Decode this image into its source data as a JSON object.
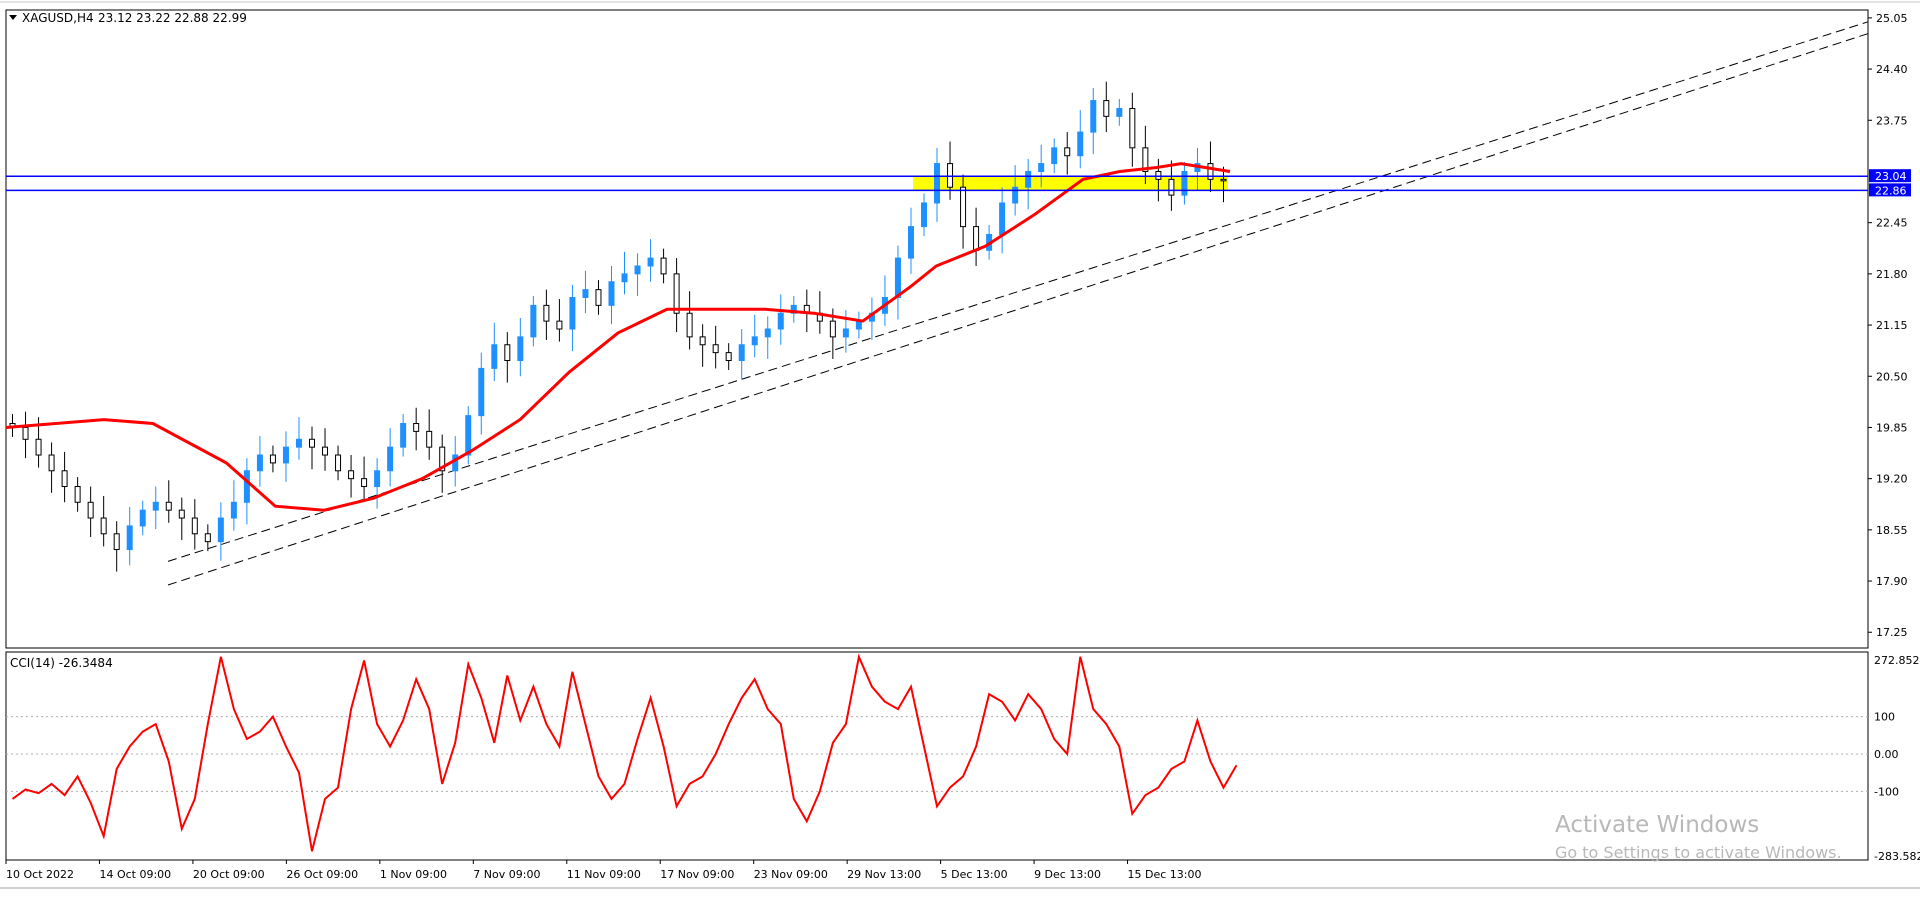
{
  "colors": {
    "background": "#ffffff",
    "frame": "#000000",
    "bull_candle": "#1e90ff",
    "bear_candle": "#000000",
    "moving_average": "#ff0000",
    "cci_line": "#ff0000",
    "level_line": "#0000ff",
    "zone_fill": "#ffff00",
    "trend_line": "#000000",
    "watermark": "#b8b8b8"
  },
  "header": {
    "symbol_label": "XAGUSD,H4",
    "ohlc_text": "23.12 23.22 22.88 22.99"
  },
  "price_axis": {
    "ticks": [
      "25.05",
      "24.40",
      "23.75",
      "22.45",
      "21.80",
      "21.15",
      "20.50",
      "19.85",
      "19.20",
      "18.55",
      "17.90",
      "17.25"
    ],
    "level_labels": [
      "23.04",
      "22.86"
    ]
  },
  "cci_panel": {
    "label": "CCI(14) -26.3484",
    "ticks": [
      "272.852",
      "100",
      "0.00",
      "-100",
      "-283.582"
    ]
  },
  "time_axis": {
    "labels": [
      "10 Oct 2022",
      "14 Oct 09:00",
      "20 Oct 09:00",
      "26 Oct 09:00",
      "1 Nov 09:00",
      "7 Nov 09:00",
      "11 Nov 09:00",
      "17 Nov 09:00",
      "23 Nov 09:00",
      "29 Nov 13:00",
      "5 Dec 13:00",
      "9 Dec 13:00",
      "15 Dec 13:00"
    ]
  },
  "watermark": {
    "line1": "Activate Windows",
    "line2": "Go to Settings to activate Windows."
  },
  "chart_data": [
    {
      "type": "candlestick",
      "title": "XAGUSD,H4",
      "last_bar_ohlc": {
        "open": 23.12,
        "high": 23.22,
        "low": 22.88,
        "close": 22.99
      },
      "ylim": [
        17.05,
        25.15
      ],
      "y_ticks": [
        25.05,
        24.4,
        23.75,
        22.45,
        21.8,
        21.15,
        20.5,
        19.85,
        19.2,
        18.55,
        17.9,
        17.25
      ],
      "x_tick_labels": [
        "10 Oct 2022",
        "14 Oct 09:00",
        "20 Oct 09:00",
        "26 Oct 09:00",
        "1 Nov 09:00",
        "7 Nov 09:00",
        "11 Nov 09:00",
        "17 Nov 09:00",
        "23 Nov 09:00",
        "29 Nov 13:00",
        "5 Dec 13:00",
        "9 Dec 13:00",
        "15 Dec 13:00"
      ],
      "approx_close_path": [
        19.85,
        19.7,
        19.5,
        19.3,
        19.1,
        18.9,
        18.7,
        18.5,
        18.3,
        18.6,
        18.8,
        18.9,
        18.8,
        18.7,
        18.5,
        18.4,
        18.7,
        18.9,
        19.3,
        19.5,
        19.4,
        19.6,
        19.7,
        19.6,
        19.5,
        19.3,
        19.2,
        19.1,
        19.3,
        19.6,
        19.9,
        19.8,
        19.6,
        19.3,
        19.5,
        20.0,
        20.6,
        20.9,
        20.7,
        21.0,
        21.4,
        21.2,
        21.1,
        21.5,
        21.6,
        21.4,
        21.7,
        21.8,
        21.9,
        22.0,
        21.8,
        21.3,
        21.0,
        20.9,
        20.8,
        20.7,
        20.9,
        21.0,
        21.1,
        21.3,
        21.4,
        21.3,
        21.2,
        21.0,
        21.1,
        21.2,
        21.3,
        21.5,
        22.0,
        22.4,
        22.7,
        23.2,
        22.9,
        22.4,
        22.1,
        22.3,
        22.7,
        22.9,
        23.1,
        23.2,
        23.4,
        23.3,
        23.6,
        24.0,
        23.8,
        23.9,
        23.4,
        23.1,
        23.0,
        22.8,
        23.1,
        23.2,
        23.0,
        22.99
      ],
      "series": [
        {
          "name": "",
          "kind": "moving_average",
          "x_fraction": [
            0.0,
            0.08,
            0.12,
            0.18,
            0.22,
            0.26,
            0.3,
            0.34,
            0.38,
            0.42,
            0.46,
            0.5,
            0.54,
            0.58,
            0.62,
            0.66,
            0.7,
            0.74,
            0.76,
            0.8,
            0.84,
            0.88,
            0.91,
            0.94,
            0.96,
            1.0
          ],
          "values": [
            19.85,
            19.95,
            19.9,
            19.4,
            18.85,
            18.8,
            18.95,
            19.2,
            19.55,
            19.95,
            20.55,
            21.05,
            21.35,
            21.35,
            21.35,
            21.3,
            21.2,
            21.65,
            21.9,
            22.15,
            22.55,
            23.0,
            23.1,
            23.15,
            23.2,
            23.1
          ]
        }
      ],
      "horizontal_levels": [
        23.04,
        22.86
      ],
      "zone": {
        "from": 22.86,
        "to": 23.04
      },
      "trend_lines": [
        {
          "style": "dashed",
          "start_value": 18.15,
          "end_value": 25.0
        },
        {
          "style": "dashed",
          "start_value": 17.85,
          "end_value": 24.85
        }
      ]
    },
    {
      "type": "line",
      "title": "CCI(14) -26.3484",
      "ylim": [
        -283.582,
        272.852
      ],
      "y_ticks": [
        272.852,
        100,
        0.0,
        -100,
        -283.582
      ],
      "series": [
        {
          "name": "CCI(14)",
          "values": [
            -120,
            -95,
            -105,
            -80,
            -110,
            -60,
            -130,
            -220,
            -40,
            20,
            60,
            80,
            -20,
            -200,
            -120,
            80,
            260,
            120,
            40,
            60,
            100,
            20,
            -50,
            -260,
            -120,
            -90,
            120,
            250,
            80,
            20,
            90,
            200,
            120,
            -80,
            30,
            240,
            150,
            30,
            210,
            90,
            180,
            80,
            20,
            220,
            80,
            -60,
            -120,
            -80,
            40,
            150,
            20,
            -140,
            -80,
            -60,
            0,
            80,
            150,
            200,
            120,
            80,
            -120,
            -180,
            -100,
            30,
            80,
            260,
            180,
            140,
            120,
            180,
            20,
            -140,
            -90,
            -60,
            20,
            160,
            140,
            90,
            160,
            120,
            40,
            0,
            260,
            120,
            80,
            20,
            -160,
            -110,
            -90,
            -40,
            -20,
            90,
            -20,
            -90,
            -30
          ]
        }
      ]
    }
  ]
}
